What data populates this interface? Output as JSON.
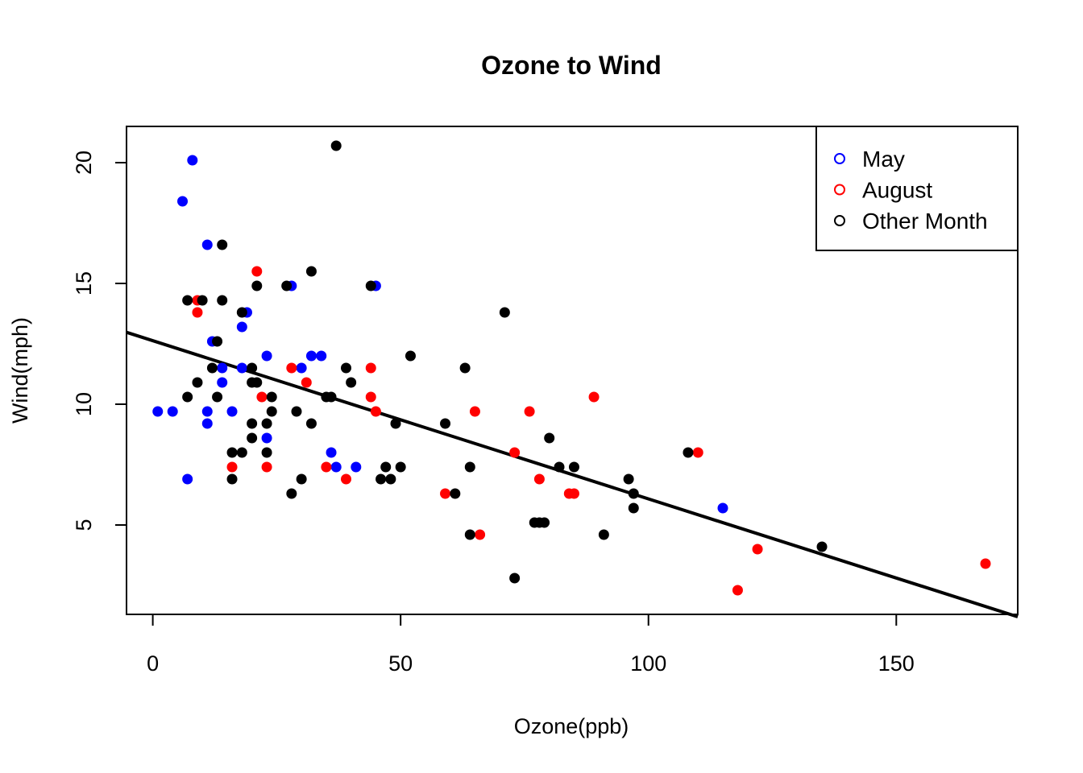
{
  "chart_data": {
    "type": "scatter",
    "title": "Ozone to Wind",
    "xlabel": "Ozone(ppb)",
    "ylabel": "Wind(mph)",
    "xlim": [
      -5.3,
      174.5
    ],
    "ylim": [
      1.3,
      21.5
    ],
    "xticks": [
      0,
      50,
      100,
      150
    ],
    "yticks": [
      5,
      10,
      15,
      20
    ],
    "grid": false,
    "legend_position": "top-right",
    "series": [
      {
        "name": "May",
        "color": "#0000FF",
        "points": [
          [
            1,
            9.7
          ],
          [
            4,
            9.7
          ],
          [
            6,
            18.4
          ],
          [
            7,
            6.9
          ],
          [
            8,
            20.1
          ],
          [
            11,
            16.6
          ],
          [
            11,
            9.7
          ],
          [
            11,
            9.2
          ],
          [
            12,
            12.6
          ],
          [
            14,
            11.5
          ],
          [
            14,
            10.9
          ],
          [
            16,
            9.7
          ],
          [
            18,
            13.2
          ],
          [
            18,
            11.5
          ],
          [
            19,
            13.8
          ],
          [
            23,
            12.0
          ],
          [
            23,
            8.6
          ],
          [
            28,
            14.9
          ],
          [
            30,
            11.5
          ],
          [
            32,
            12.0
          ],
          [
            34,
            12.0
          ],
          [
            36,
            8.0
          ],
          [
            37,
            7.4
          ],
          [
            41,
            7.4
          ],
          [
            45,
            14.9
          ],
          [
            115,
            5.7
          ]
        ]
      },
      {
        "name": "August",
        "color": "#FF0000",
        "points": [
          [
            9,
            14.3
          ],
          [
            9,
            13.8
          ],
          [
            16,
            7.4
          ],
          [
            21,
            15.5
          ],
          [
            22,
            10.3
          ],
          [
            23,
            7.4
          ],
          [
            28,
            11.5
          ],
          [
            31,
            10.9
          ],
          [
            35,
            7.4
          ],
          [
            39,
            6.9
          ],
          [
            44,
            11.5
          ],
          [
            44,
            10.3
          ],
          [
            45,
            9.7
          ],
          [
            59,
            6.3
          ],
          [
            65,
            9.7
          ],
          [
            66,
            4.6
          ],
          [
            73,
            8.0
          ],
          [
            76,
            9.7
          ],
          [
            78,
            6.9
          ],
          [
            84,
            6.3
          ],
          [
            85,
            6.3
          ],
          [
            89,
            10.3
          ],
          [
            110,
            8.0
          ],
          [
            118,
            2.3
          ],
          [
            122,
            4.0
          ],
          [
            168,
            3.4
          ]
        ]
      },
      {
        "name": "Other Month",
        "color": "#000000",
        "points": [
          [
            7,
            14.3
          ],
          [
            7,
            10.3
          ],
          [
            9,
            10.9
          ],
          [
            10,
            14.3
          ],
          [
            12,
            11.5
          ],
          [
            13,
            12.6
          ],
          [
            13,
            10.3
          ],
          [
            14,
            16.6
          ],
          [
            14,
            14.3
          ],
          [
            16,
            8.0
          ],
          [
            16,
            6.9
          ],
          [
            18,
            13.8
          ],
          [
            18,
            8.0
          ],
          [
            20,
            11.5
          ],
          [
            20,
            10.9
          ],
          [
            20,
            9.2
          ],
          [
            20,
            8.6
          ],
          [
            21,
            14.9
          ],
          [
            21,
            10.9
          ],
          [
            23,
            9.2
          ],
          [
            23,
            8.0
          ],
          [
            24,
            10.3
          ],
          [
            24,
            9.7
          ],
          [
            27,
            14.9
          ],
          [
            28,
            6.3
          ],
          [
            29,
            9.7
          ],
          [
            30,
            6.9
          ],
          [
            32,
            15.5
          ],
          [
            32,
            9.2
          ],
          [
            35,
            10.3
          ],
          [
            36,
            10.3
          ],
          [
            37,
            20.7
          ],
          [
            39,
            11.5
          ],
          [
            40,
            10.9
          ],
          [
            44,
            14.9
          ],
          [
            46,
            6.9
          ],
          [
            47,
            7.4
          ],
          [
            48,
            6.9
          ],
          [
            49,
            9.2
          ],
          [
            50,
            7.4
          ],
          [
            52,
            12.0
          ],
          [
            59,
            9.2
          ],
          [
            61,
            6.3
          ],
          [
            63,
            11.5
          ],
          [
            64,
            7.4
          ],
          [
            64,
            4.6
          ],
          [
            71,
            13.8
          ],
          [
            73,
            2.8
          ],
          [
            77,
            5.1
          ],
          [
            78,
            5.1
          ],
          [
            79,
            5.1
          ],
          [
            80,
            8.6
          ],
          [
            82,
            7.4
          ],
          [
            85,
            7.4
          ],
          [
            91,
            4.6
          ],
          [
            96,
            6.9
          ],
          [
            97,
            6.3
          ],
          [
            97,
            5.7
          ],
          [
            108,
            8.0
          ],
          [
            135,
            4.1
          ]
        ]
      }
    ],
    "fit_line": {
      "intercept": 12.63,
      "slope": -0.0655,
      "color": "#000000"
    }
  }
}
